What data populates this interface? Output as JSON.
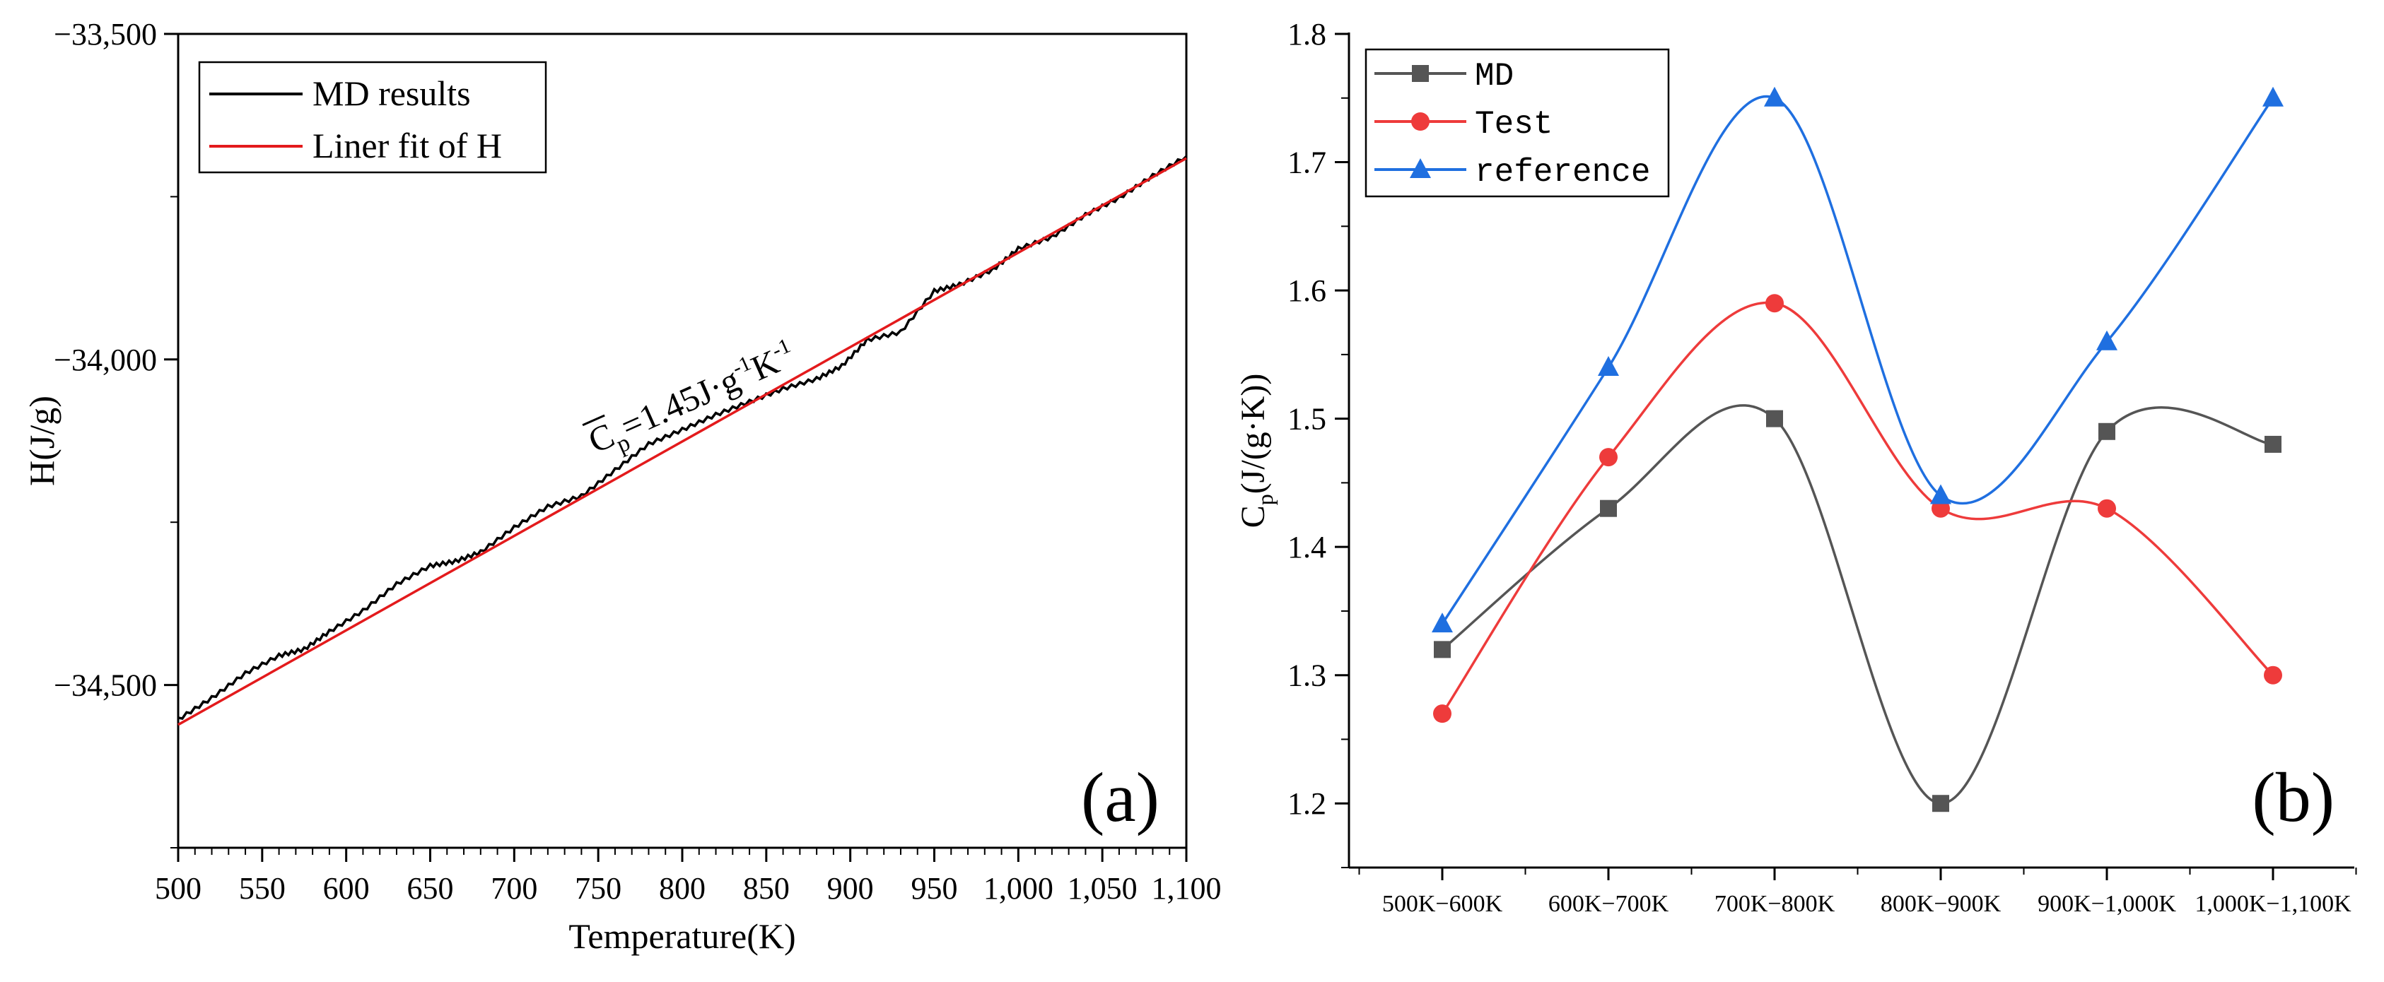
{
  "chart_data": [
    {
      "type": "line",
      "panel_label": "(a)",
      "title": "",
      "xlabel": "Temperature(K)",
      "ylabel": "H(J/g)",
      "xlim": [
        500,
        1100
      ],
      "ylim": [
        -34750,
        -33500
      ],
      "x_ticks": [
        500,
        550,
        600,
        650,
        700,
        750,
        800,
        850,
        900,
        950,
        1000,
        1050,
        1100
      ],
      "x_tick_labels": [
        "500",
        "550",
        "600",
        "650",
        "700",
        "750",
        "800",
        "850",
        "900",
        "950",
        "1,000",
        "1,050",
        "1,100"
      ],
      "y_ticks": [
        -33500,
        -34000,
        -34500
      ],
      "y_tick_labels": [
        "−33,500",
        "−34,000",
        "−34,500"
      ],
      "series": [
        {
          "name": "MD results",
          "color": "#000000",
          "x": [
            500,
            520,
            540,
            560,
            575,
            590,
            610,
            630,
            650,
            665,
            680,
            700,
            720,
            740,
            760,
            780,
            800,
            820,
            840,
            860,
            880,
            895,
            910,
            930,
            950,
            965,
            985,
            1000,
            1020,
            1040,
            1060,
            1080,
            1100
          ],
          "y": [
            -34553,
            -34520,
            -34482,
            -34455,
            -34445,
            -34418,
            -34386,
            -34345,
            -34317,
            -34310,
            -34296,
            -34258,
            -34226,
            -34210,
            -34170,
            -34130,
            -34108,
            -34085,
            -34065,
            -34045,
            -34030,
            -34010,
            -33970,
            -33958,
            -33895,
            -33885,
            -33862,
            -33830,
            -33812,
            -33778,
            -33752,
            -33718,
            -33688
          ]
        },
        {
          "name": "Liner fit of H",
          "color": "#e31a1c",
          "x": [
            500,
            1100
          ],
          "y": [
            -34561,
            -33691
          ]
        }
      ],
      "annotation": {
        "main": "C",
        "sub": "p",
        "rest": "=1.45J·g",
        "sup1": "-1",
        "unit2": "K",
        "sup2": "-1"
      }
    },
    {
      "type": "line",
      "panel_label": "(b)",
      "title": "",
      "xlabel": "",
      "ylabel_main": "C",
      "ylabel_sub": "p",
      "ylabel_rest": "(J/(g·K))",
      "ylim": [
        1.15,
        1.8
      ],
      "y_ticks": [
        1.2,
        1.3,
        1.4,
        1.5,
        1.6,
        1.7,
        1.8
      ],
      "y_tick_labels": [
        "1.2",
        "1.3",
        "1.4",
        "1.5",
        "1.6",
        "1.7",
        "1.8"
      ],
      "categories": [
        "500K−600K",
        "600K−700K",
        "700K−800K",
        "800K−900K",
        "900K−1,000K",
        "1,000K−1,100K"
      ],
      "series": [
        {
          "name": "MD",
          "color": "#555555",
          "marker": "square",
          "values": [
            1.32,
            1.43,
            1.5,
            1.2,
            1.49,
            1.48
          ]
        },
        {
          "name": "Test",
          "color": "#ee3b3b",
          "marker": "circle",
          "values": [
            1.27,
            1.47,
            1.59,
            1.43,
            1.43,
            1.3
          ]
        },
        {
          "name": "reference",
          "color": "#1f6fe0",
          "marker": "triangle",
          "values": [
            1.34,
            1.54,
            1.75,
            1.44,
            1.56,
            1.75
          ]
        }
      ]
    }
  ]
}
